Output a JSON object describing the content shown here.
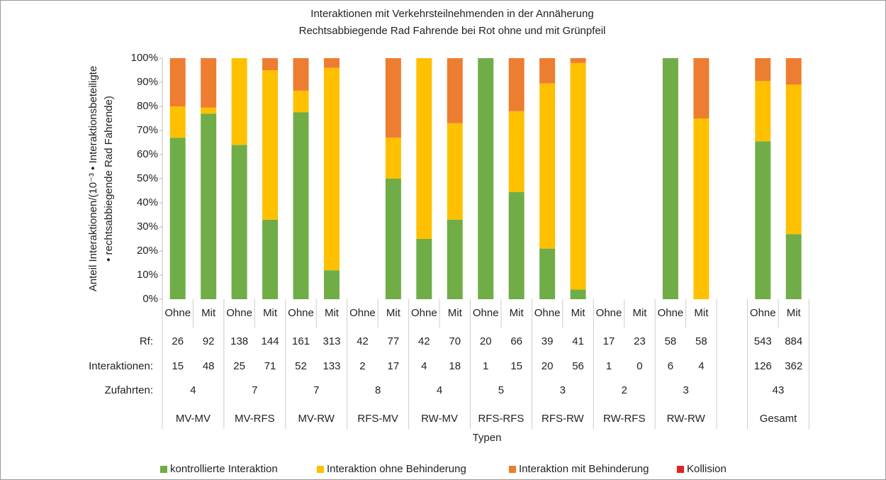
{
  "chart_data": {
    "type": "bar",
    "stacked": true,
    "title": [
      "Interaktionen mit Verkehrsteilnehmenden in der Annäherung",
      "Rechtsabbiegende Rad Fahrende bei Rot ohne und mit Grünpfeil"
    ],
    "y_label": [
      "Anteil Interaktionen/(10⁻³ • Interaktionsbeteiligte",
      "• rechtsabbiegende Rad Fahrende)"
    ],
    "x_label": "Typen",
    "categories": [
      "Ohne",
      "Mit",
      "Ohne",
      "Mit",
      "Ohne",
      "Mit",
      "Ohne",
      "Mit",
      "Ohne",
      "Mit",
      "Ohne",
      "Mit",
      "Ohne",
      "Mit",
      "Ohne",
      "Mit",
      "Ohne",
      "Mit",
      null,
      "Ohne",
      "Mit"
    ],
    "series": [
      {
        "name": "kontrollierte Interaktion",
        "color": "#70ad47",
        "values": [
          67,
          77,
          64,
          33,
          77.5,
          12,
          0,
          50,
          25,
          33,
          100,
          44.5,
          21,
          4,
          0,
          0,
          100,
          0,
          null,
          65.5,
          27
        ]
      },
      {
        "name": "Interaktion ohne Behinderung",
        "color": "#ffc000",
        "values": [
          13,
          2.5,
          36,
          62,
          9,
          84,
          0,
          17,
          75,
          40,
          0,
          33.5,
          68.5,
          94,
          0,
          0,
          0,
          75,
          null,
          25,
          62
        ]
      },
      {
        "name": "Interaktion mit Behinderung",
        "color": "#ed7d31",
        "values": [
          20,
          20.5,
          0,
          5,
          13.5,
          4,
          0,
          33,
          0,
          27,
          0,
          22,
          10.5,
          2,
          0,
          0,
          0,
          25,
          null,
          9.5,
          11
        ]
      },
      {
        "name": "Kollision",
        "color": "#e52222",
        "values": [
          0,
          0,
          0,
          0,
          0,
          0,
          0,
          0,
          0,
          0,
          0,
          0,
          0,
          0,
          0,
          0,
          0,
          0,
          null,
          0,
          0
        ]
      }
    ],
    "ylim": [
      0,
      100
    ],
    "yticks": [
      {
        "value": 0,
        "label": "0%"
      },
      {
        "value": 10,
        "label": "10%"
      },
      {
        "value": 20,
        "label": "20%"
      },
      {
        "value": 30,
        "label": "30%"
      },
      {
        "value": 40,
        "label": "40%"
      },
      {
        "value": 50,
        "label": "50%"
      },
      {
        "value": 60,
        "label": "60%"
      },
      {
        "value": 70,
        "label": "70%"
      },
      {
        "value": 80,
        "label": "80%"
      },
      {
        "value": 90,
        "label": "90%"
      },
      {
        "value": 100,
        "label": "100%"
      }
    ],
    "table": {
      "rows": [
        {
          "label": "Rf:",
          "values": [
            26,
            92,
            138,
            144,
            161,
            313,
            42,
            77,
            42,
            70,
            20,
            66,
            39,
            41,
            17,
            23,
            58,
            58,
            null,
            543,
            884
          ]
        },
        {
          "label": "Interaktionen:",
          "values": [
            15,
            48,
            25,
            71,
            52,
            133,
            2,
            17,
            4,
            18,
            1,
            15,
            20,
            56,
            1,
            0,
            6,
            4,
            null,
            126,
            362
          ]
        }
      ],
      "zufahrten": {
        "label": "Zufahrten:",
        "values": [
          4,
          7,
          7,
          8,
          4,
          5,
          3,
          2,
          3,
          43
        ]
      },
      "groups": [
        "MV-MV",
        "MV-RFS",
        "MV-RW",
        "RFS-MV",
        "RW-MV",
        "RFS-RFS",
        "RFS-RW",
        "RW-RFS",
        "RW-RW",
        "Gesamt"
      ]
    }
  }
}
